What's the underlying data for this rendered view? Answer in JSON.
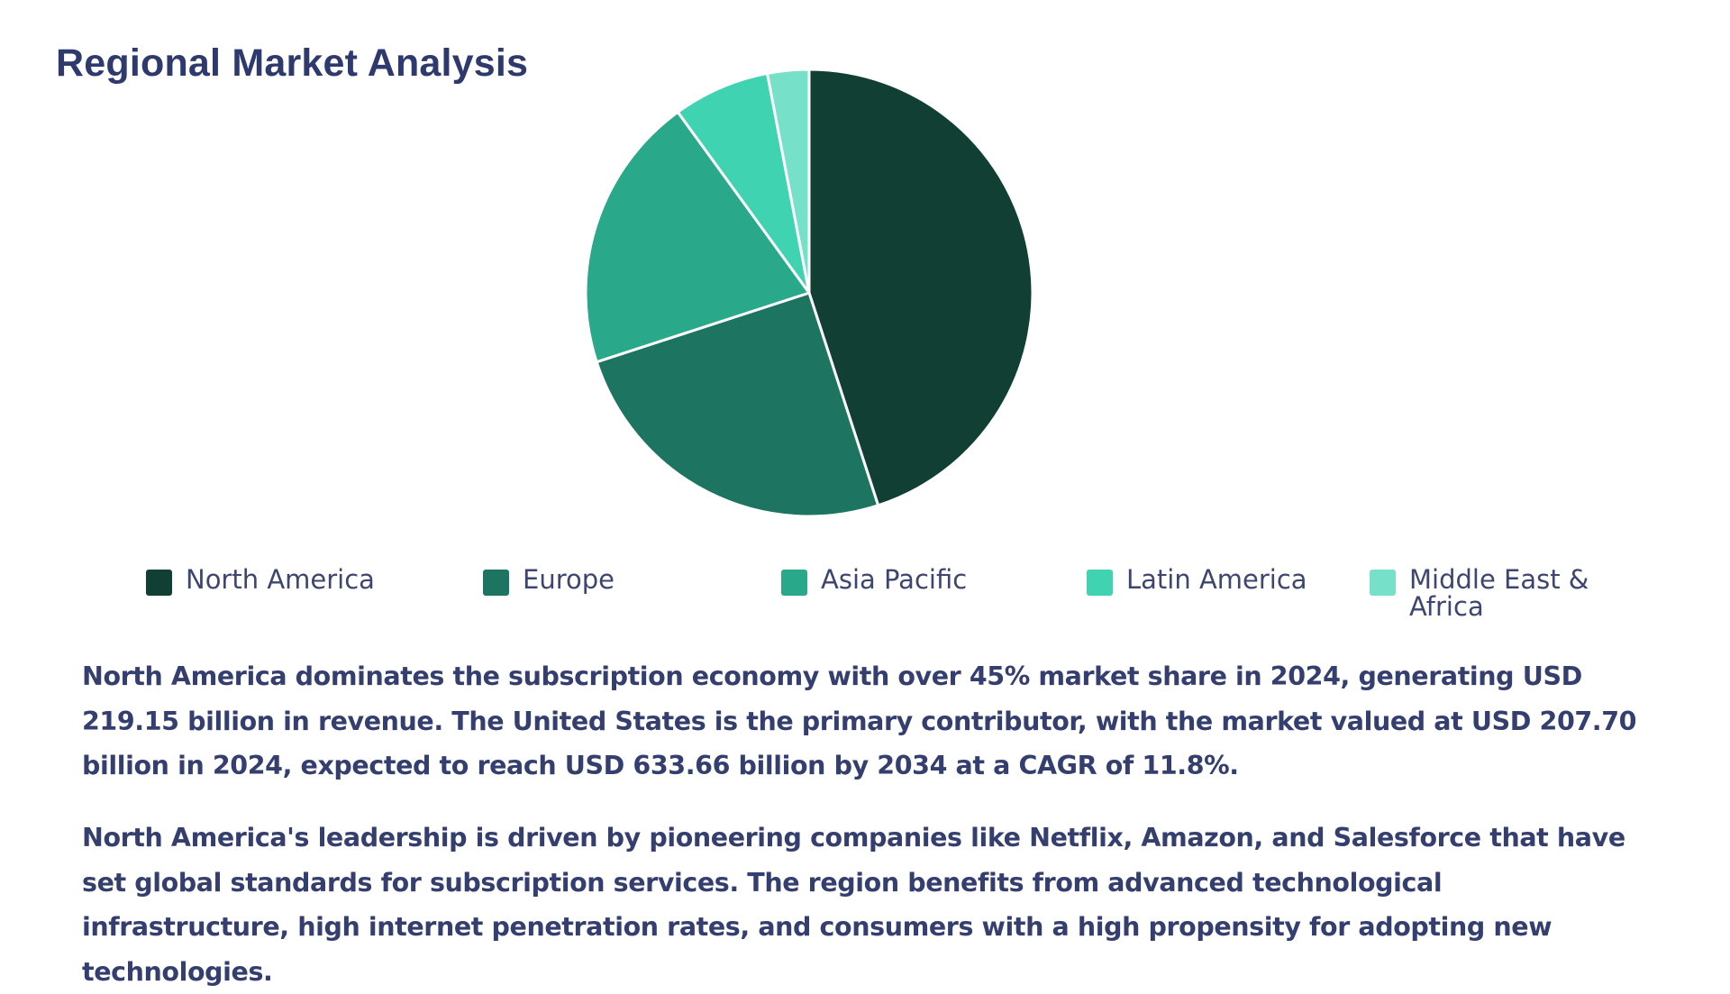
{
  "title": "Regional Market Analysis",
  "chart_data": {
    "type": "pie",
    "categories": [
      "North America",
      "Europe",
      "Asia Pacific",
      "Latin America",
      "Middle East & Africa"
    ],
    "values": [
      45,
      25,
      20,
      7,
      3
    ],
    "colors": [
      "#123f33",
      "#1d7461",
      "#2aa98a",
      "#40d3b2",
      "#76e0c8"
    ],
    "legend_position": "bottom",
    "slice_border_color": "#ffffff"
  },
  "paragraphs": [
    "North America dominates the subscription economy with over 45% market share in 2024, generating USD 219.15 billion in revenue. The United States is the primary contributor, with the market valued at USD 207.70 billion in 2024, expected to reach USD 633.66 billion by 2034 at a CAGR of 11.8%.",
    "North America's leadership is driven by pioneering companies like Netflix, Amazon, and Salesforce that have set global standards for subscription services. The region benefits from advanced technological infrastructure, high internet penetration rates, and consumers with a high propensity for adopting new technologies."
  ]
}
